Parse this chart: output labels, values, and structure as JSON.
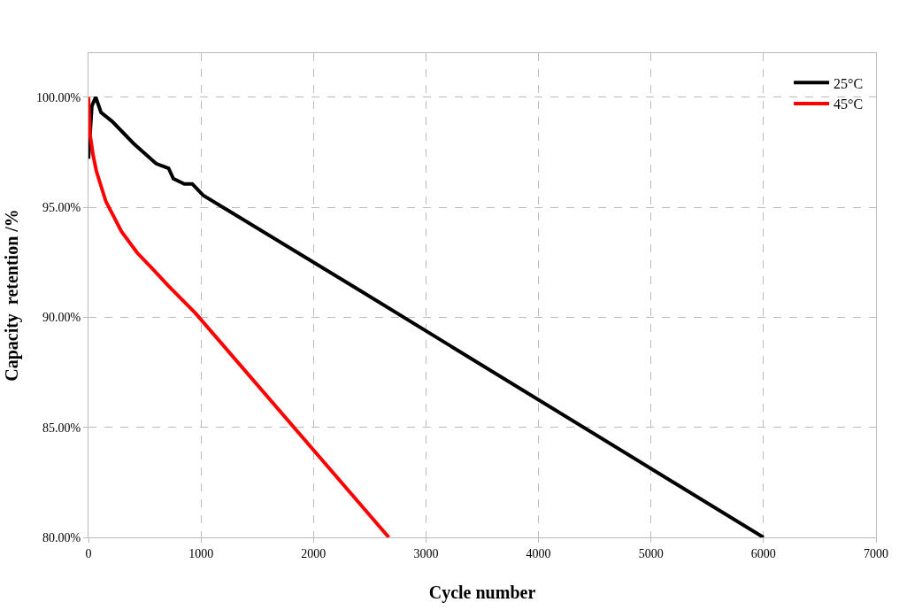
{
  "chart_data": {
    "type": "line",
    "xlabel": "Cycle number",
    "ylabel": "Capacity  retention /%",
    "xlim": [
      0,
      7000
    ],
    "xticks": [
      0,
      1000,
      2000,
      3000,
      4000,
      5000,
      6000,
      7000
    ],
    "ylim": [
      80,
      102
    ],
    "yticks": [
      {
        "value": 80,
        "label": "80.00%"
      },
      {
        "value": 85,
        "label": "85.00%"
      },
      {
        "value": 90,
        "label": "90.00%"
      },
      {
        "value": 95,
        "label": "95.00%"
      },
      {
        "value": 100,
        "label": "100.00%"
      }
    ],
    "grid": true,
    "legend": "top right",
    "marker": "none",
    "line_style": "solid",
    "series": [
      {
        "name": "25°C",
        "color": "#000000",
        "x": [
          0,
          30,
          64,
          112,
          210,
          400,
          601,
          712,
          754,
          852,
          922,
          1020,
          2389,
          6000
        ],
        "values": [
          97.2,
          99.6,
          100.0,
          99.3,
          98.9,
          97.9,
          96.98,
          96.77,
          96.3,
          96.06,
          96.06,
          95.54,
          91.29,
          80.0
        ]
      },
      {
        "name": "45°C",
        "color": "#ff0000",
        "x": [
          0,
          5,
          14,
          40,
          70,
          154,
          293,
          433,
          573,
          712,
          950,
          2670
        ],
        "values": [
          100.0,
          99.3,
          98.28,
          97.4,
          96.64,
          95.27,
          93.9,
          92.93,
          92.18,
          91.42,
          90.19,
          80.0
        ]
      }
    ]
  }
}
